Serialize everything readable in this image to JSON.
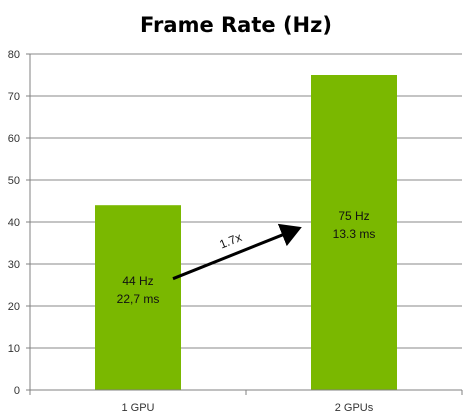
{
  "chart_data": {
    "type": "bar",
    "title": "Frame Rate (Hz)",
    "categories": [
      "1 GPU",
      "2 GPUs"
    ],
    "values": [
      44,
      75
    ],
    "bar_labels": [
      [
        "44 Hz",
        "22,7 ms"
      ],
      [
        "75 Hz",
        "13.3 ms"
      ]
    ],
    "ylim": [
      0,
      80
    ],
    "yticks": [
      0,
      10,
      20,
      30,
      40,
      50,
      60,
      70,
      80
    ],
    "grid": true,
    "annotation": {
      "text": "1.7x",
      "type": "arrow",
      "from_category": "1 GPU",
      "to_category": "2 GPUs"
    },
    "colors": {
      "bar": "#7ab800",
      "grid": "#8a8a8a",
      "axis": "#808080"
    }
  }
}
